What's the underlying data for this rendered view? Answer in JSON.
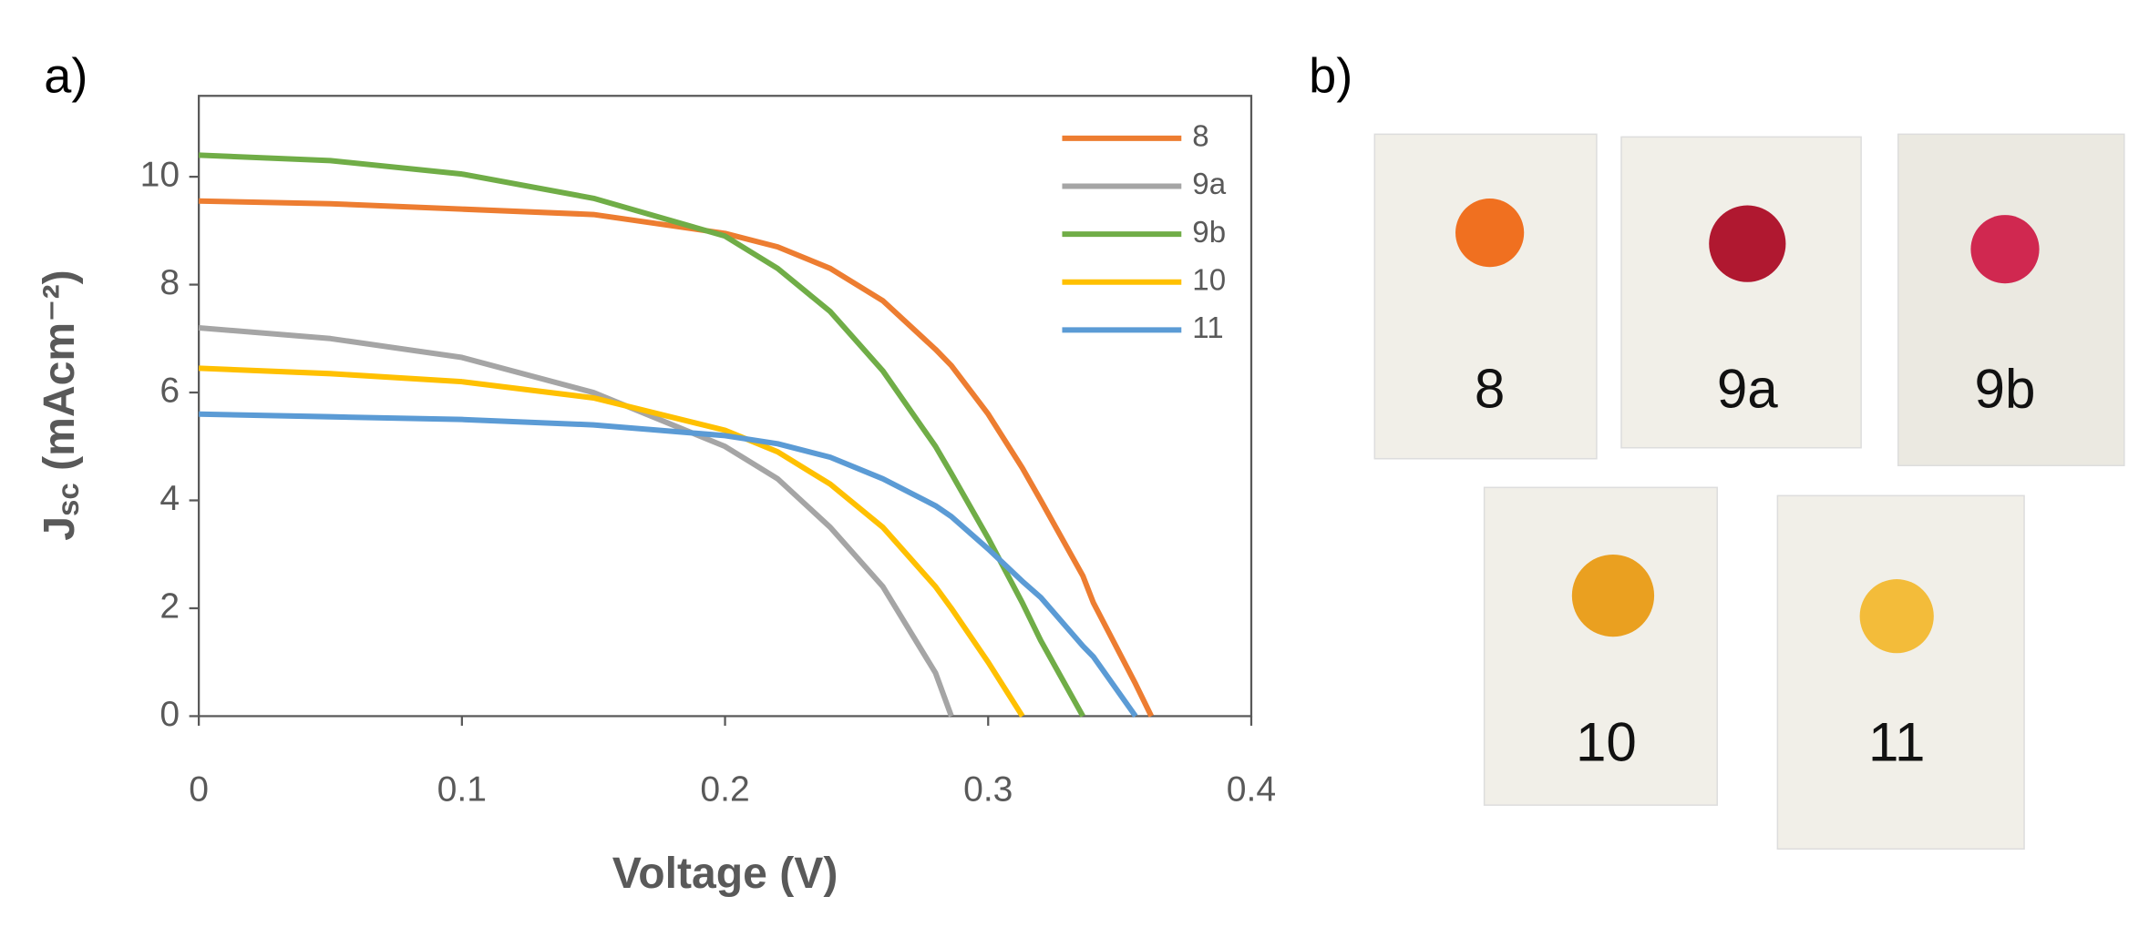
{
  "chart_data": {
    "type": "line",
    "panel_label": "a)",
    "x_label": "Voltage (V)",
    "y_label": "J",
    "y_label_sub": "sc",
    "y_label_rest": " (mAcm⁻²)",
    "x": [
      0,
      0.05,
      0.1,
      0.15,
      0.2,
      0.22,
      0.24,
      0.26,
      0.28,
      0.286,
      0.3,
      0.313,
      0.32,
      0.336,
      0.34,
      0.356,
      0.362
    ],
    "series": [
      {
        "name": "8",
        "color": "#ed7d31",
        "values": [
          9.55,
          9.5,
          9.4,
          9.3,
          8.95,
          8.7,
          8.3,
          7.7,
          6.8,
          6.5,
          5.6,
          4.6,
          4.0,
          2.6,
          2.1,
          0.6,
          0
        ]
      },
      {
        "name": "9a",
        "color": "#a5a5a5",
        "values": [
          7.2,
          7.0,
          6.65,
          6.0,
          5.0,
          4.4,
          3.5,
          2.4,
          0.8,
          0,
          null,
          null,
          null,
          null,
          null,
          null,
          null
        ]
      },
      {
        "name": "9b",
        "color": "#70ad47",
        "values": [
          10.4,
          10.3,
          10.05,
          9.6,
          8.9,
          8.3,
          7.5,
          6.4,
          5.0,
          4.5,
          3.3,
          2.1,
          1.4,
          0,
          null,
          null,
          null
        ]
      },
      {
        "name": "10",
        "color": "#ffc000",
        "values": [
          6.45,
          6.35,
          6.2,
          5.9,
          5.3,
          4.9,
          4.3,
          3.5,
          2.4,
          2.0,
          1.0,
          0,
          null,
          null,
          null,
          null,
          null
        ]
      },
      {
        "name": "11",
        "color": "#5b9bd5",
        "values": [
          5.6,
          5.55,
          5.5,
          5.4,
          5.2,
          5.05,
          4.8,
          4.4,
          3.9,
          3.7,
          3.1,
          2.5,
          2.2,
          1.3,
          1.1,
          0,
          null
        ]
      }
    ],
    "xlim": [
      0,
      0.4
    ],
    "xticks": [
      0,
      0.1,
      0.2,
      0.3,
      0.4
    ],
    "ylim": [
      0,
      11.5
    ],
    "yticks": [
      0,
      2,
      4,
      6,
      8,
      10
    ],
    "legend": "upper right",
    "grid": false
  },
  "photos": {
    "panel_label": "b)",
    "labels": [
      "8",
      "9a",
      "9b",
      "10",
      "11"
    ]
  }
}
